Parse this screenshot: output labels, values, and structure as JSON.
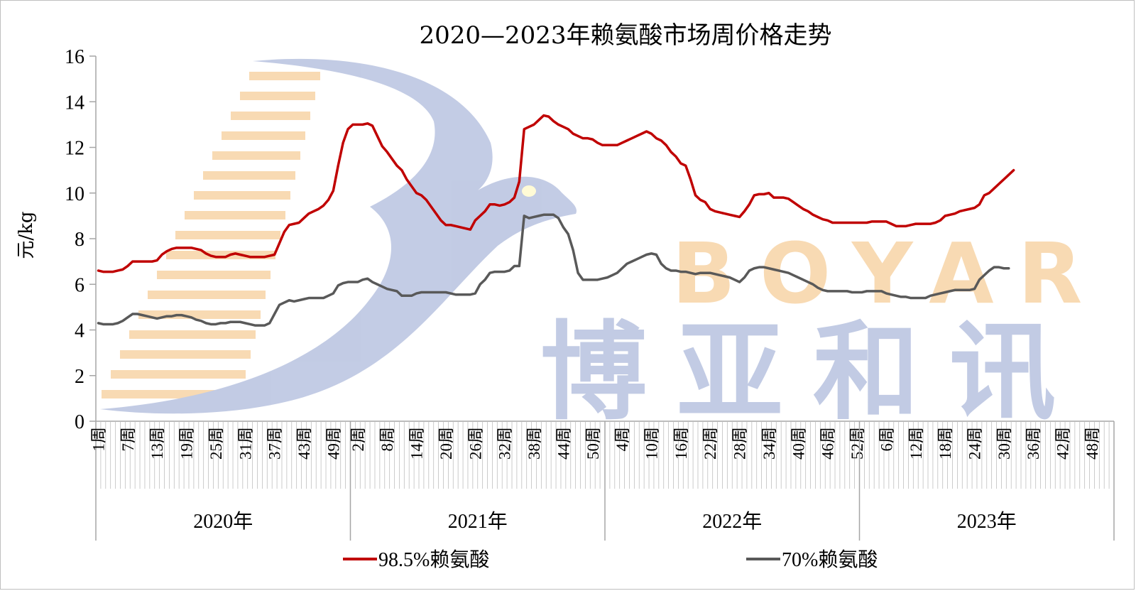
{
  "chart_data": {
    "type": "line",
    "title": "2020—2023年赖氨酸市场周价格走势",
    "ylabel": "元/kg",
    "ylim": [
      0,
      16
    ],
    "yticks": [
      "0",
      "2",
      "4",
      "6",
      "8",
      "10",
      "12",
      "14",
      "16"
    ],
    "grid": false,
    "legend_position": "bottom",
    "years": [
      {
        "label": "2020年",
        "weeks": 52,
        "tick_labels": [
          "1周",
          "7周",
          "13周",
          "19周",
          "25周",
          "31周",
          "37周",
          "43周",
          "49周"
        ]
      },
      {
        "label": "2021年",
        "weeks": 52,
        "tick_labels": [
          "2周",
          "8周",
          "14周",
          "20周",
          "26周",
          "32周",
          "38周",
          "44周",
          "50周"
        ]
      },
      {
        "label": "2022年",
        "weeks": 52,
        "tick_labels": [
          "4周",
          "10周",
          "16周",
          "22周",
          "28周",
          "34周",
          "40周",
          "46周",
          "52周"
        ]
      },
      {
        "label": "2023年",
        "weeks": 52,
        "tick_labels": [
          "6周",
          "12周",
          "18周",
          "24周",
          "30周",
          "36周",
          "42周",
          "48周"
        ]
      }
    ],
    "series": [
      {
        "name": "98.5%赖氨酸",
        "color": "#c00000",
        "values": [
          6.6,
          6.55,
          6.55,
          6.55,
          6.6,
          6.65,
          6.8,
          7.0,
          7.0,
          7.0,
          7.0,
          7.0,
          7.05,
          7.3,
          7.45,
          7.55,
          7.6,
          7.6,
          7.6,
          7.6,
          7.55,
          7.5,
          7.35,
          7.25,
          7.2,
          7.2,
          7.2,
          7.3,
          7.35,
          7.3,
          7.25,
          7.2,
          7.2,
          7.2,
          7.2,
          7.25,
          7.3,
          7.8,
          8.3,
          8.6,
          8.65,
          8.7,
          8.9,
          9.1,
          9.2,
          9.3,
          9.45,
          9.7,
          10.1,
          11.2,
          12.2,
          12.8,
          13.0,
          13.0,
          13.0,
          13.05,
          12.95,
          12.5,
          12.05,
          11.8,
          11.5,
          11.2,
          11.0,
          10.6,
          10.3,
          10.0,
          9.9,
          9.7,
          9.4,
          9.1,
          8.8,
          8.6,
          8.6,
          8.55,
          8.5,
          8.45,
          8.4,
          8.8,
          9.0,
          9.2,
          9.5,
          9.5,
          9.45,
          9.5,
          9.6,
          9.8,
          10.5,
          12.8,
          12.9,
          13.0,
          13.2,
          13.4,
          13.35,
          13.15,
          13.0,
          12.9,
          12.8,
          12.6,
          12.5,
          12.4,
          12.4,
          12.35,
          12.2,
          12.1,
          12.1,
          12.1,
          12.1,
          12.2,
          12.3,
          12.4,
          12.5,
          12.6,
          12.7,
          12.6,
          12.4,
          12.3,
          12.1,
          11.8,
          11.6,
          11.3,
          11.2,
          10.6,
          9.9,
          9.7,
          9.6,
          9.3,
          9.2,
          9.15,
          9.1,
          9.05,
          9.0,
          8.95,
          9.2,
          9.5,
          9.9,
          9.95,
          9.95,
          10.0,
          9.8,
          9.8,
          9.8,
          9.75,
          9.6,
          9.45,
          9.3,
          9.2,
          9.05,
          8.95,
          8.85,
          8.8,
          8.7,
          8.7,
          8.7,
          8.7,
          8.7,
          8.7,
          8.7,
          8.7,
          8.75,
          8.75,
          8.75,
          8.75,
          8.65,
          8.55,
          8.55,
          8.55,
          8.6,
          8.65,
          8.65,
          8.65,
          8.65,
          8.7,
          8.8,
          9.0,
          9.05,
          9.1,
          9.2,
          9.25,
          9.3,
          9.35,
          9.5,
          9.9,
          10.0,
          10.2,
          10.4,
          10.6,
          10.8,
          11.0
        ]
      },
      {
        "name": "70%赖氨酸",
        "color": "#595959",
        "values": [
          4.3,
          4.25,
          4.25,
          4.25,
          4.3,
          4.4,
          4.55,
          4.7,
          4.7,
          4.65,
          4.6,
          4.55,
          4.5,
          4.55,
          4.6,
          4.6,
          4.65,
          4.65,
          4.6,
          4.55,
          4.45,
          4.4,
          4.3,
          4.25,
          4.25,
          4.3,
          4.3,
          4.35,
          4.35,
          4.35,
          4.3,
          4.25,
          4.2,
          4.2,
          4.2,
          4.3,
          4.7,
          5.1,
          5.2,
          5.3,
          5.25,
          5.3,
          5.35,
          5.4,
          5.4,
          5.4,
          5.4,
          5.5,
          5.6,
          5.95,
          6.05,
          6.1,
          6.1,
          6.1,
          6.2,
          6.25,
          6.1,
          6.0,
          5.9,
          5.8,
          5.75,
          5.7,
          5.5,
          5.5,
          5.5,
          5.6,
          5.65,
          5.65,
          5.65,
          5.65,
          5.65,
          5.65,
          5.6,
          5.55,
          5.55,
          5.55,
          5.55,
          5.6,
          6.0,
          6.2,
          6.5,
          6.55,
          6.55,
          6.55,
          6.6,
          6.8,
          6.8,
          9.0,
          8.9,
          8.95,
          9.0,
          9.05,
          9.05,
          9.05,
          8.9,
          8.5,
          8.2,
          7.5,
          6.5,
          6.2,
          6.2,
          6.2,
          6.2,
          6.25,
          6.3,
          6.4,
          6.5,
          6.7,
          6.9,
          7.0,
          7.1,
          7.2,
          7.3,
          7.35,
          7.3,
          6.9,
          6.7,
          6.6,
          6.6,
          6.55,
          6.55,
          6.5,
          6.45,
          6.5,
          6.5,
          6.5,
          6.45,
          6.4,
          6.35,
          6.3,
          6.2,
          6.1,
          6.3,
          6.6,
          6.7,
          6.75,
          6.75,
          6.7,
          6.65,
          6.6,
          6.55,
          6.5,
          6.4,
          6.3,
          6.2,
          6.1,
          6.0,
          5.85,
          5.75,
          5.7,
          5.7,
          5.7,
          5.7,
          5.7,
          5.65,
          5.65,
          5.65,
          5.7,
          5.7,
          5.7,
          5.7,
          5.6,
          5.55,
          5.5,
          5.45,
          5.45,
          5.4,
          5.4,
          5.4,
          5.4,
          5.5,
          5.55,
          5.6,
          5.65,
          5.7,
          5.75,
          5.75,
          5.75,
          5.75,
          5.8,
          6.2,
          6.4,
          6.6,
          6.75,
          6.75,
          6.7,
          6.7
        ]
      }
    ]
  },
  "watermark": {
    "latin": "BOYAR",
    "chinese": "博亚和讯",
    "blue": "#b8c3e0",
    "orange": "#f7d4a6"
  }
}
